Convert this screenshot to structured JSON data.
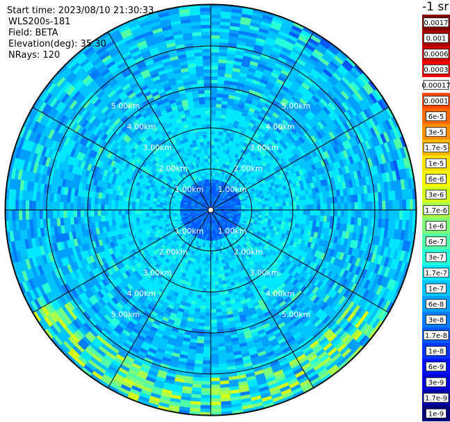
{
  "header": {
    "start_time": "Start time: 2023/08/10 21:30:33",
    "instrument": "WLS200s-181",
    "field": "Field: BETA",
    "elevation": "Elevation(deg): 35.30",
    "nrays": "NRays: 120",
    "unit": "-1 sr"
  },
  "chart_data": {
    "type": "heatmap",
    "projection": "polar",
    "nrays": 120,
    "ring_labels": [
      "1.00km",
      "2.00km",
      "3.00km",
      "4.00km",
      "5.00km"
    ],
    "ring_label_color": "#ffffff",
    "colorbar": [
      {
        "label": "0.0017",
        "color": "#7f0000"
      },
      {
        "label": "0.001",
        "color": "#a80000"
      },
      {
        "label": "0.0006",
        "color": "#d10000"
      },
      {
        "label": "0.0003",
        "color": "#f80000"
      },
      {
        "label": "0.00017",
        "color": "#ffffff"
      },
      {
        "label": "0.0001",
        "color": "#ff4500"
      },
      {
        "label": "6e-5",
        "color": "#ff6a00"
      },
      {
        "label": "3e-5",
        "color": "#ff9000"
      },
      {
        "label": "1.7e-5",
        "color": "#ffb800"
      },
      {
        "label": "1e-5",
        "color": "#ffe100"
      },
      {
        "label": "6e-6",
        "color": "#f7f700"
      },
      {
        "label": "3e-6",
        "color": "#d4ff1a"
      },
      {
        "label": "1.7e-6",
        "color": "#a9ff4a"
      },
      {
        "label": "1e-6",
        "color": "#7dff7a"
      },
      {
        "label": "6e-7",
        "color": "#52ffa9"
      },
      {
        "label": "3e-7",
        "color": "#27ffd8"
      },
      {
        "label": "1.7e-7",
        "color": "#00e8ff"
      },
      {
        "label": "1e-7",
        "color": "#00c4ff"
      },
      {
        "label": "6e-8",
        "color": "#00a0ff"
      },
      {
        "label": "3e-8",
        "color": "#007cff"
      },
      {
        "label": "1.7e-8",
        "color": "#0058ff"
      },
      {
        "label": "1e-8",
        "color": "#0034ff"
      },
      {
        "label": "6e-9",
        "color": "#0010ff"
      },
      {
        "label": "3e-9",
        "color": "#0000d8"
      },
      {
        "label": "1.7e-9",
        "color": "#0000a8"
      },
      {
        "label": "1e-9",
        "color": "#00007a"
      }
    ]
  }
}
